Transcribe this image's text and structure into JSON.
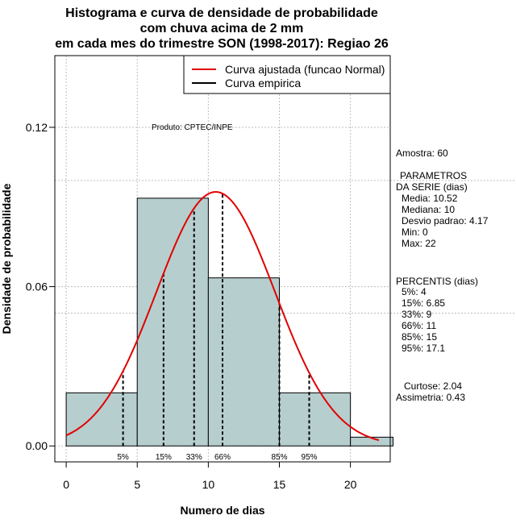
{
  "chart_data": {
    "type": "histogram",
    "title": [
      "Histograma e curva de densidade de probabilidade",
      "com chuva acima de 2 mm",
      "em cada mes do trimestre SON (1998-2017): Regiao 26"
    ],
    "xlabel": "Numero de dias",
    "ylabel": "Densidade de probabilidade",
    "xlim": [
      -0.8,
      22.8
    ],
    "ylim": [
      -0.006,
      0.147
    ],
    "x_ticks": [
      0,
      5,
      10,
      15,
      20
    ],
    "y_ticks": [
      0.0,
      0.06,
      0.12
    ],
    "y_tick_labels": [
      "0.00",
      "0.06",
      "0.12"
    ],
    "bins": [
      {
        "start": 0,
        "end": 5,
        "density": 0.02
      },
      {
        "start": 5,
        "end": 10,
        "density": 0.0933
      },
      {
        "start": 10,
        "end": 15,
        "density": 0.0633
      },
      {
        "start": 15,
        "end": 20,
        "density": 0.02
      },
      {
        "start": 20,
        "end": 23,
        "density": 0.0033
      }
    ],
    "normal_fit": {
      "mean": 10.52,
      "sd": 4.17,
      "x_range": [
        0,
        22
      ],
      "color": "#e00000"
    },
    "empirical_color": "#000000",
    "bar_color": "#b7cece",
    "legend": {
      "entries": [
        "Curva ajustada (funcao Normal)",
        "Curva empirica"
      ],
      "position": "top-right"
    },
    "percentiles": [
      {
        "label": "5%",
        "value": 4
      },
      {
        "label": "15%",
        "value": 6.85
      },
      {
        "label": "33%",
        "value": 9
      },
      {
        "label": "66%",
        "value": 11
      },
      {
        "label": "85%",
        "value": 15
      },
      {
        "label": "95%",
        "value": 17.1
      }
    ],
    "annotation": "Produto: CPTEC/INPE"
  },
  "side_panel": {
    "amostra": "Amostra: 60",
    "parametros_title": "PARAMETROS",
    "parametros_sub": "DA SERIE (dias)",
    "media": "Media: 10.52",
    "mediana": "Mediana: 10",
    "desvio": "Desvio padrao: 4.17",
    "min": "Min: 0",
    "max": "Max: 22",
    "percentis_title": "PERCENTIS (dias)",
    "p5": "5%: 4",
    "p15": "15%: 6.85",
    "p33": "33%: 9",
    "p66": "66%: 11",
    "p85": "85%: 15",
    "p95": "95%: 17.1",
    "curtose": "Curtose: 2.04",
    "assimetria": "Assimetria: 0.43"
  }
}
